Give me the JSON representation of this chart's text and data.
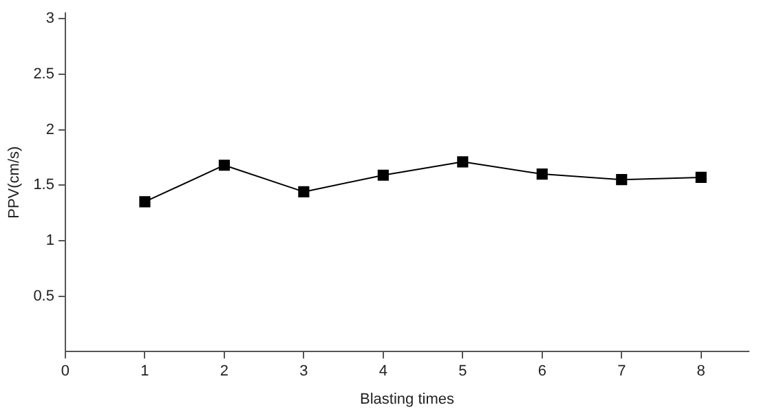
{
  "chart_data": {
    "type": "line",
    "xlabel": "Blasting times",
    "ylabel": "PPV(cm/s)",
    "x": [
      1,
      2,
      3,
      4,
      5,
      6,
      7,
      8
    ],
    "series": [
      {
        "color": "#000000",
        "values": [
          1.35,
          1.68,
          1.44,
          1.59,
          1.71,
          1.6,
          1.55,
          1.57
        ]
      }
    ],
    "xlim": [
      0,
      8.6
    ],
    "xticks": [
      0,
      1,
      2,
      3,
      4,
      5,
      6,
      7,
      8
    ],
    "ylim": [
      0,
      3.05
    ],
    "yticks": [
      0.5,
      1,
      1.5,
      2,
      2.5,
      3
    ],
    "marker": "square",
    "line_style": "solid",
    "grid": false,
    "legend": false
  }
}
